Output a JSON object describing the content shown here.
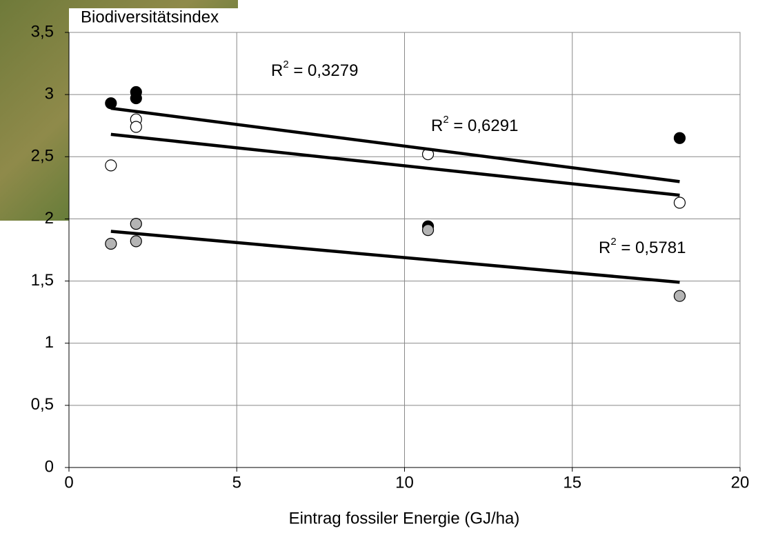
{
  "chart_data": {
    "type": "scatter",
    "y_label": "Biodiversitätsindex",
    "x_label": "Eintrag fossiler Energie (GJ/ha)",
    "xlim": [
      0,
      20
    ],
    "xticks": [
      0,
      5,
      10,
      15,
      20
    ],
    "ylim": [
      0,
      3.5
    ],
    "yticks": [
      0,
      {
        "value": 0.5,
        "label": "0,5"
      },
      1,
      {
        "value": 1.5,
        "label": "1,5"
      },
      2,
      {
        "value": 2.5,
        "label": "2,5"
      },
      3,
      {
        "value": 3.5,
        "label": "3,5"
      }
    ],
    "grid": true,
    "series": [
      {
        "color": "#000000",
        "x": [
          1.25,
          2.0,
          2.0,
          10.7,
          18.2
        ],
        "values": [
          2.93,
          3.02,
          2.97,
          1.94,
          2.65
        ],
        "trend_x": [
          1.25,
          18.2
        ],
        "trend_y": [
          2.89,
          2.3
        ]
      },
      {
        "color": "#ffffff",
        "x": [
          1.25,
          2.0,
          2.0,
          10.7,
          18.2
        ],
        "values": [
          2.43,
          2.8,
          2.74,
          2.52,
          2.13
        ],
        "trend_x": [
          1.25,
          18.2
        ],
        "trend_y": [
          2.68,
          2.19
        ]
      },
      {
        "color": "#b4b4b4",
        "x": [
          1.25,
          2.0,
          2.0,
          10.7,
          18.2
        ],
        "values": [
          1.8,
          1.96,
          1.82,
          1.91,
          1.38
        ],
        "trend_x": [
          1.25,
          18.2
        ],
        "trend_y": [
          1.9,
          1.49
        ]
      }
    ],
    "annotations": [
      {
        "base": "R",
        "sup": "2",
        "text": " = 0,3279"
      },
      {
        "base": "R",
        "sup": "2",
        "text": " = 0,6291"
      },
      {
        "base": "R",
        "sup": "2",
        "text": " = 0,5781"
      }
    ]
  }
}
